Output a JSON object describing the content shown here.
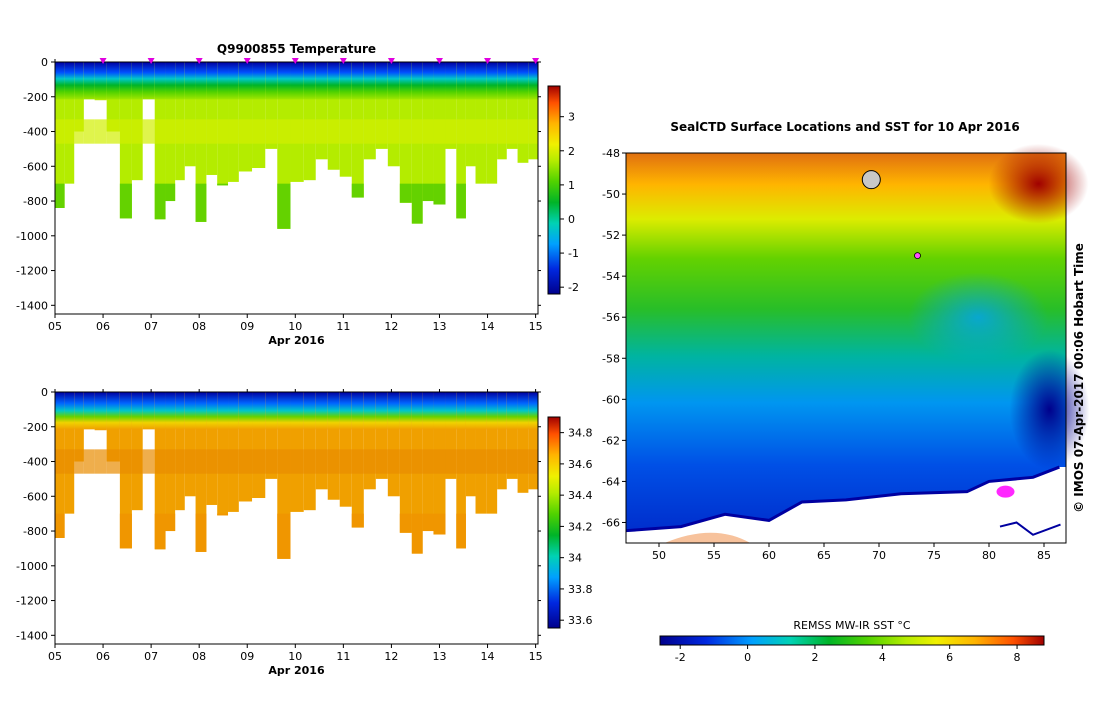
{
  "chart_data": [
    {
      "type": "heatmap",
      "title": "Q9900855  Temperature",
      "xlabel": "Apr 2016",
      "ylabel": "",
      "x_ticks": [
        "05",
        "06",
        "07",
        "08",
        "09",
        "10",
        "11",
        "12",
        "13",
        "14",
        "15"
      ],
      "xlim": [
        5,
        15.05
      ],
      "y_ticks": [
        "0",
        "-200",
        "-400",
        "-600",
        "-800",
        "-1000",
        "-1200",
        "-1400"
      ],
      "ylim": [
        -1450,
        0
      ],
      "profile_times": [
        5.1,
        5.3,
        5.5,
        5.7,
        5.95,
        6.2,
        6.5,
        6.7,
        6.95,
        7.2,
        7.4,
        7.6,
        7.8,
        8.05,
        8.25,
        8.5,
        8.7,
        8.95,
        9.25,
        9.5,
        9.75,
        10.05,
        10.3,
        10.55,
        10.8,
        11.05,
        11.3,
        11.55,
        11.8,
        12.05,
        12.3,
        12.55,
        12.75,
        13.0,
        13.25,
        13.45,
        13.65,
        13.85,
        14.1,
        14.3,
        14.5,
        14.75,
        14.95
      ],
      "profile_max_depth": [
        -840,
        -700,
        -400,
        -210,
        -220,
        -400,
        -900,
        -680,
        -200,
        -905,
        -800,
        -680,
        -600,
        -920,
        -650,
        -710,
        -690,
        -630,
        -610,
        -500,
        -960,
        -690,
        -680,
        -560,
        -620,
        -660,
        -780,
        -560,
        -500,
        -600,
        -810,
        -930,
        -800,
        -820,
        -500,
        -900,
        -600,
        -700,
        -700,
        -560,
        -500,
        -580,
        -560
      ],
      "colorbar": {
        "ticks": [
          "3",
          "2",
          "1",
          "0",
          "-1",
          "-2"
        ],
        "range": [
          -2.2,
          3.9
        ]
      },
      "profile_markers": [
        6,
        7,
        8,
        9,
        10,
        11,
        12,
        13,
        14,
        15
      ]
    },
    {
      "type": "heatmap",
      "title": "",
      "xlabel": "Apr 2016",
      "ylabel": "",
      "x_ticks": [
        "05",
        "06",
        "07",
        "08",
        "09",
        "10",
        "11",
        "12",
        "13",
        "14",
        "15"
      ],
      "xlim": [
        5,
        15.05
      ],
      "y_ticks": [
        "0",
        "-200",
        "-400",
        "-600",
        "-800",
        "-1000",
        "-1200",
        "-1400"
      ],
      "ylim": [
        -1450,
        0
      ],
      "colorbar": {
        "ticks": [
          "34.8",
          "34.6",
          "34.4",
          "34.2",
          "34",
          "33.8",
          "33.6"
        ],
        "range": [
          33.55,
          34.9
        ]
      }
    },
    {
      "type": "heatmap",
      "title": "SealCTD Surface Locations and SST for 10 Apr 2016",
      "xlabel": "",
      "ylabel": "",
      "x_ticks": [
        "50",
        "55",
        "60",
        "65",
        "70",
        "75",
        "80",
        "85"
      ],
      "xlim": [
        47,
        87
      ],
      "y_ticks": [
        "-48",
        "-50",
        "-52",
        "-54",
        "-56",
        "-58",
        "-60",
        "-62",
        "-64",
        "-66"
      ],
      "ylim": [
        -67,
        -48
      ],
      "colorbar": {
        "label": "REMSS MW-IR SST °C",
        "ticks": [
          "-2",
          "0",
          "2",
          "4",
          "6",
          "8"
        ],
        "range": [
          -2.6,
          8.8
        ]
      },
      "side_label": "© IMOS 07-Apr-2017 00:06 Hobart Time"
    }
  ]
}
